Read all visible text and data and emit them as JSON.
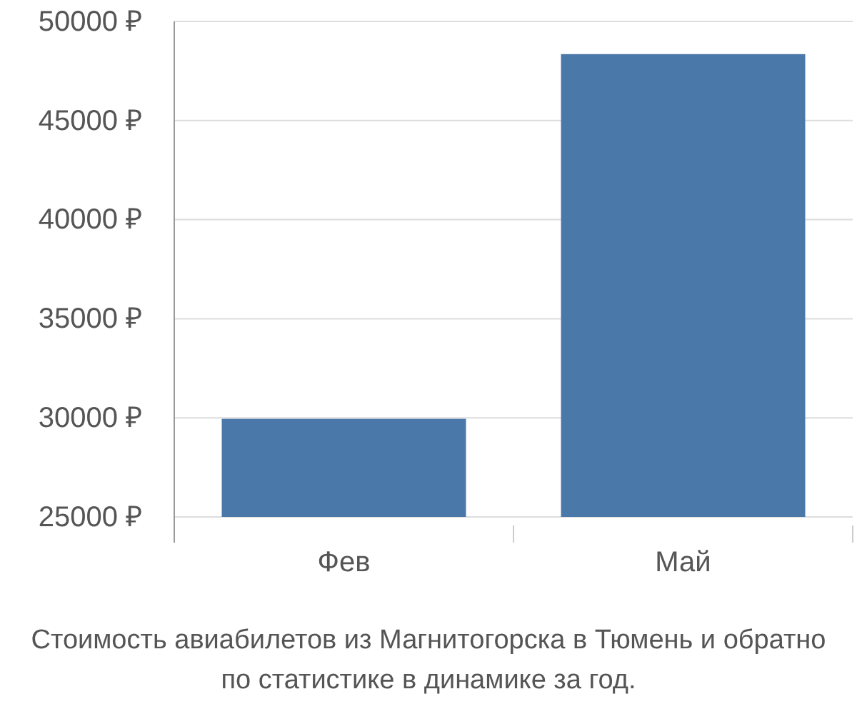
{
  "chart_data": {
    "type": "bar",
    "categories": [
      "Фев",
      "Май"
    ],
    "values": [
      29950,
      48350
    ],
    "color": "#4a78a8",
    "ylim": [
      25000,
      50000
    ],
    "yticks": [
      {
        "value": 25000,
        "label": "25000 ₽"
      },
      {
        "value": 30000,
        "label": "30000 ₽"
      },
      {
        "value": 35000,
        "label": "35000 ₽"
      },
      {
        "value": 40000,
        "label": "40000 ₽"
      },
      {
        "value": 45000,
        "label": "45000 ₽"
      },
      {
        "value": 50000,
        "label": "50000 ₽"
      }
    ],
    "grid": "y",
    "annotations": [
      "Стоимость авиабилетов из Магнитогорска в Тюмень и обратно",
      "по статистике в динамике за год."
    ]
  }
}
